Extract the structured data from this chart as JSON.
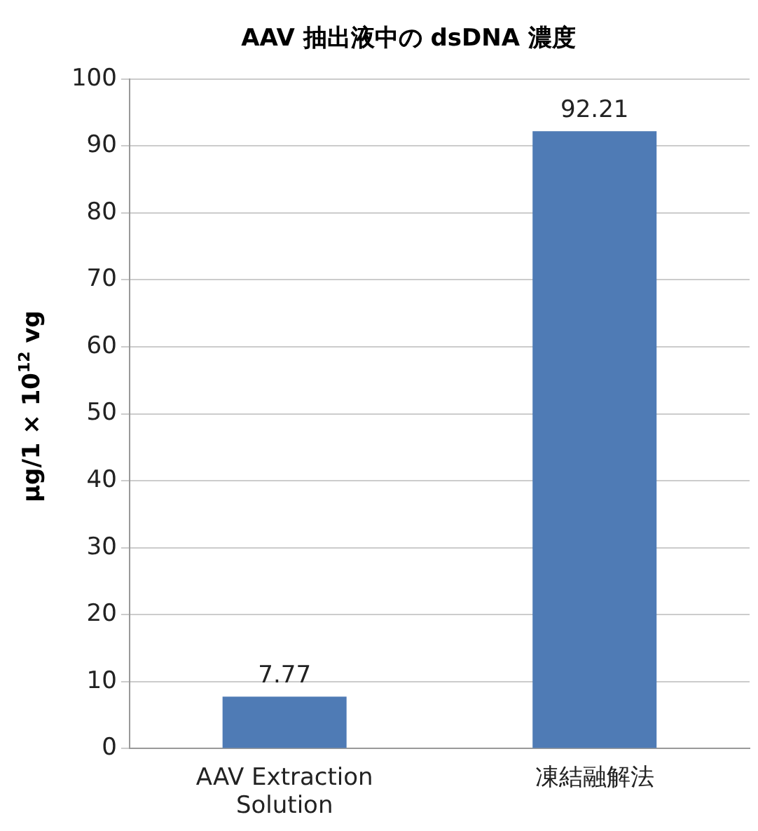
{
  "chart_data": {
    "type": "bar",
    "title": "AAV 抽出液中の dsDNA 濃度",
    "ylabel": "μg/1 × 10$^{12}$ vg",
    "categories": [
      "AAV Extraction Solution",
      "凍結融解法"
    ],
    "values": [
      7.77,
      92.21
    ],
    "color": "#4f7bb5",
    "ylim": [
      0,
      100
    ],
    "yticks": [
      0,
      10,
      20,
      30,
      40,
      50,
      60,
      70,
      80,
      90,
      100
    ],
    "grid": "y",
    "data_labels": true,
    "legend": false
  }
}
